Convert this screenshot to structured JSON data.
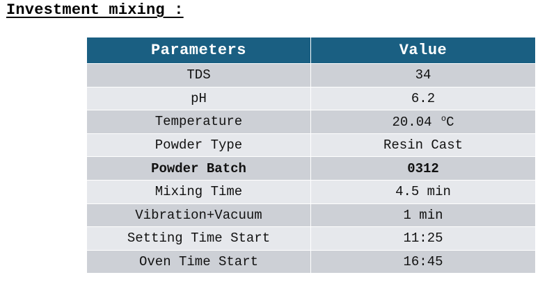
{
  "title": "Investment mixing :",
  "table": {
    "headers": [
      "Parameters",
      "Value"
    ],
    "rows": [
      {
        "parameter": "TDS",
        "value": "34",
        "bold": false
      },
      {
        "parameter": "pH",
        "value": "6.2",
        "bold": false
      },
      {
        "parameter": "Temperature",
        "value": "20.04",
        "unit_sup": "o",
        "unit": "C",
        "bold": false
      },
      {
        "parameter": "Powder Type",
        "value": "Resin Cast",
        "bold": false
      },
      {
        "parameter": "Powder Batch",
        "value": "0312",
        "bold": true
      },
      {
        "parameter": "Mixing Time",
        "value": "4.5 min",
        "bold": false
      },
      {
        "parameter": "Vibration+Vacuum",
        "value": "1 min",
        "bold": false
      },
      {
        "parameter": "Setting Time Start",
        "value": "11:25",
        "bold": false
      },
      {
        "parameter": "Oven Time Start",
        "value": "16:45",
        "bold": false
      }
    ]
  }
}
